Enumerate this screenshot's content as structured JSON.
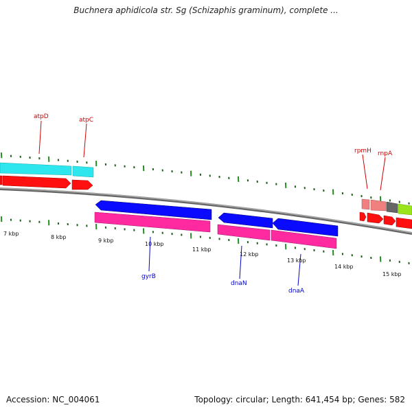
{
  "title": "Buchnera aphidicola str. Sg (Schizaphis graminum), complete ...",
  "footer": {
    "accession": "Accession: NC_004061",
    "topology": "Topology: circular; Length: 641,454 bp; Genes: 582"
  },
  "colors": {
    "backbone": "#888888",
    "cyan_feature": "#2ee6ee",
    "red_feature": "#ff1010",
    "blue_feature": "#0a0aff",
    "pink_feature": "#ff2aa0",
    "salmon_feature": "#f08080",
    "lime_feature": "#9be31a",
    "grey_feature": "#666666",
    "forward_label": "#cc0000",
    "reverse_label": "#0000cc",
    "tick_major": "#228b22",
    "tick_minor": "#1f5e1f"
  },
  "scale": {
    "tick_labels": [
      "7 kbp",
      "8 kbp",
      "9 kbp",
      "10 kbp",
      "11 kbp",
      "12 kbp",
      "13 kbp",
      "14 kbp",
      "15 kbp"
    ]
  },
  "genes": {
    "forward": [
      "atpD",
      "atpC",
      "rpmH",
      "rnpA"
    ],
    "reverse": [
      "gyrB",
      "dnaN",
      "dnaA"
    ]
  }
}
